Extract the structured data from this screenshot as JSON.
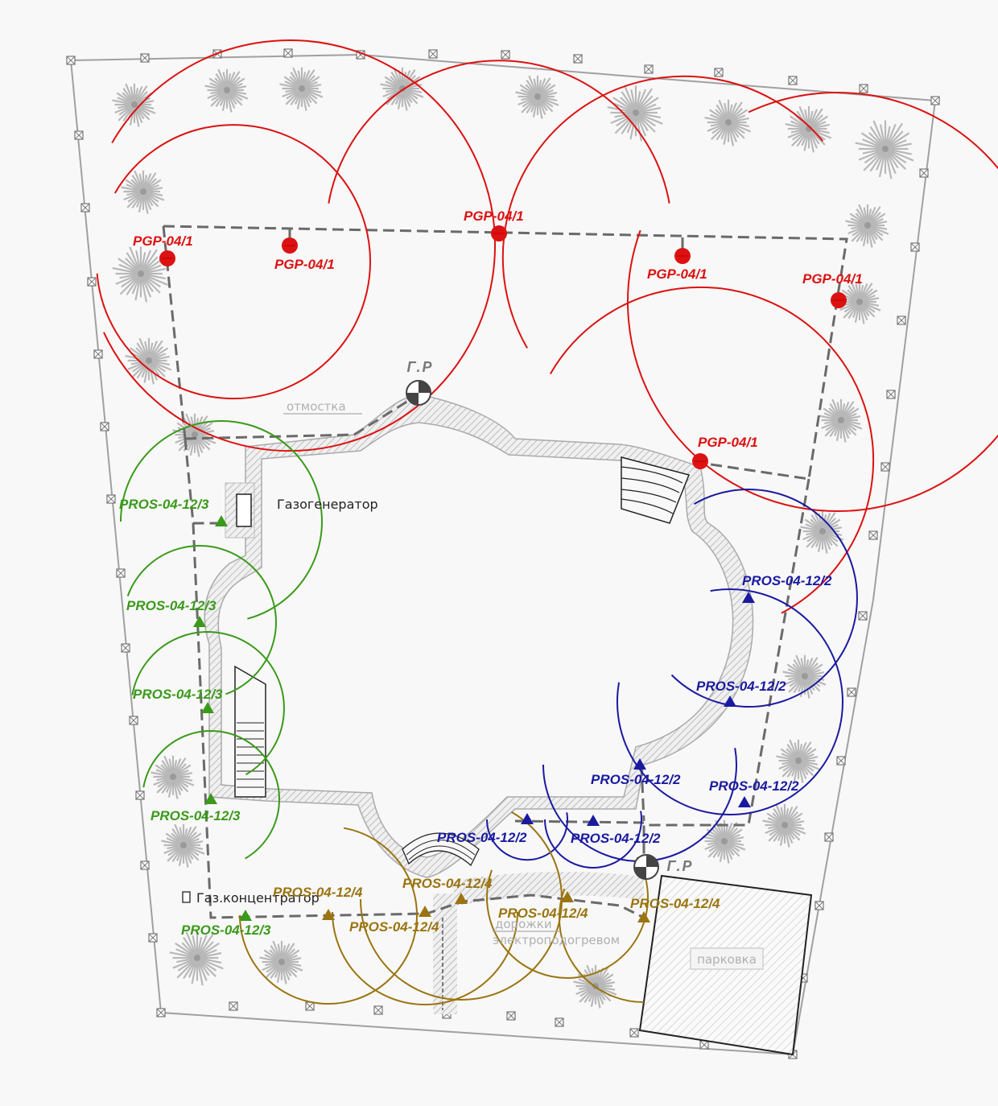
{
  "colors": {
    "rotor_zone": "#dd1111",
    "spray_zone_3": "#3a9a1a",
    "spray_zone_2": "#1a1aa0",
    "spray_zone_4": "#9a7410",
    "pipe": "#666666",
    "boundary": "#999999",
    "tree": "#b8b8b8"
  },
  "labels": {
    "valve_box_top": "Г.Р",
    "valve_box_bottom": "Г.Р",
    "otmostka": "отмостка",
    "gas_generator": "Газогенератор",
    "gas_concentrator": "Газ.концентратор",
    "paths_line1": "дорожки",
    "paths_line2": "электроподогревом",
    "parking": "парковка"
  },
  "sprinklers": {
    "pgp": [
      {
        "label": "PGP-04/1"
      },
      {
        "label": "PGP-04/1"
      },
      {
        "label": "PGP-04/1"
      },
      {
        "label": "PGP-04/1"
      },
      {
        "label": "PGP-04/1"
      },
      {
        "label": "PGP-04/1"
      }
    ],
    "pros3": [
      {
        "label": "PROS-04-12/3"
      },
      {
        "label": "PROS-04-12/3"
      },
      {
        "label": "PROS-04-12/3"
      },
      {
        "label": "PROS-04-12/3"
      },
      {
        "label": "PROS-04-12/3"
      }
    ],
    "pros2": [
      {
        "label": "PROS-04-12/2"
      },
      {
        "label": "PROS-04-12/2"
      },
      {
        "label": "PROS-04-12/2"
      },
      {
        "label": "PROS-04-12/2"
      },
      {
        "label": "PROS-04-12/2"
      },
      {
        "label": "PROS-04-12/2"
      }
    ],
    "pros4": [
      {
        "label": "PROS-04-12/4"
      },
      {
        "label": "PROS-04-12/4"
      },
      {
        "label": "PROS-04-12/4"
      },
      {
        "label": "PROS-04-12/4"
      },
      {
        "label": "PROS-04-12/4"
      }
    ]
  }
}
